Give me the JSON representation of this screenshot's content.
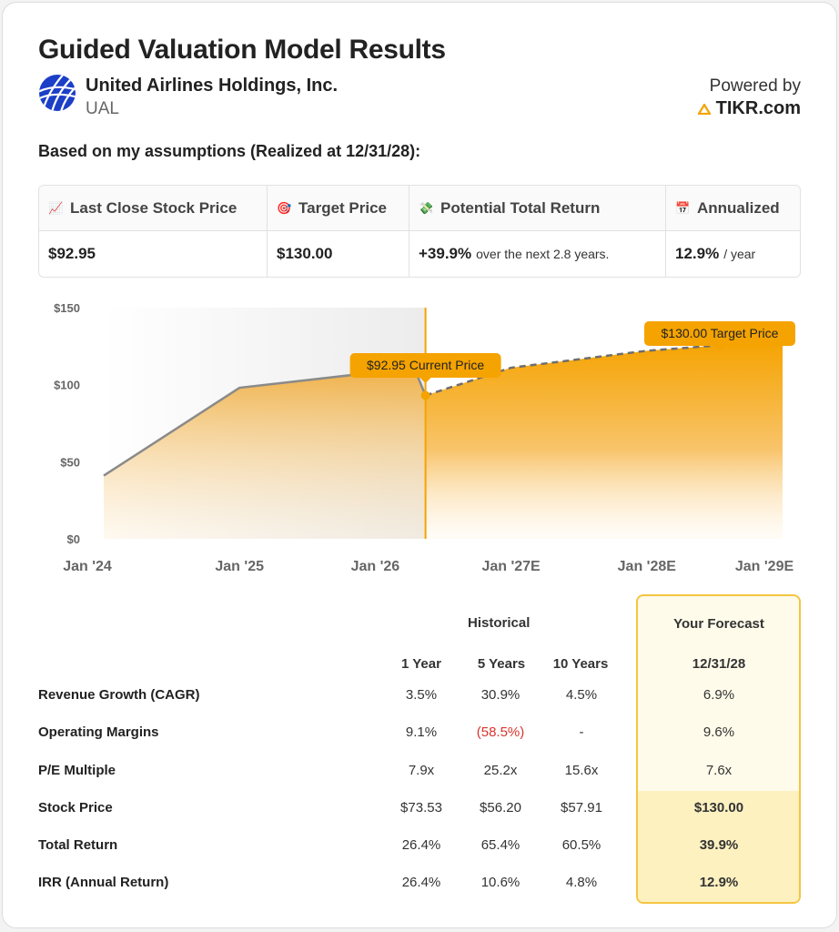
{
  "header": {
    "title": "Guided Valuation Model Results",
    "company": "United Airlines Holdings, Inc.",
    "ticker": "UAL",
    "powered_by": "Powered by",
    "brand": "TIKR.com"
  },
  "assumptions_label": "Based on my assumptions (Realized at 12/31/28):",
  "summary": [
    {
      "icon": "chart-up-icon",
      "glyph": "📈",
      "label": "Last Close Stock Price",
      "value": "$92.95",
      "suffix": ""
    },
    {
      "icon": "target-icon",
      "glyph": "🎯",
      "label": "Target Price",
      "value": "$130.00",
      "suffix": ""
    },
    {
      "icon": "money-icon",
      "glyph": "💸",
      "label": "Potential Total Return",
      "value": "+39.9%",
      "suffix": "over the next 2.8 years."
    },
    {
      "icon": "calendar-icon",
      "glyph": "📅",
      "label": "Annualized",
      "value": "12.9%",
      "suffix": "/ year"
    }
  ],
  "chart_data": {
    "type": "area",
    "title": "",
    "x_labels": [
      "Jan '24",
      "Jan '25",
      "Jan '26",
      "Jan '27E",
      "Jan '28E",
      "Jan '29E"
    ],
    "y_ticks": [
      "$0",
      "$50",
      "$100",
      "$150"
    ],
    "ylim": [
      0,
      150
    ],
    "xlim": [
      2024.0,
      2029.0
    ],
    "historical": {
      "x": [
        2024.0,
        2025.0,
        2026.0,
        2026.3,
        2026.37
      ],
      "y": [
        41,
        98,
        108,
        108,
        93
      ]
    },
    "forecast": {
      "x": [
        2026.37,
        2027.0,
        2028.0,
        2028.6,
        2029.0
      ],
      "y": [
        93,
        111,
        122,
        126,
        128
      ]
    },
    "current_marker_x": 2026.37,
    "current_label": "$92.95 Current Price",
    "target_label": "$130.00 Target Price",
    "colors": {
      "accent": "#f5a300",
      "line": "#8a8a8a",
      "shade": "#ececec"
    }
  },
  "table": {
    "historical_label": "Historical",
    "forecast_label": "Your Forecast",
    "columns": [
      "1 Year",
      "5 Years",
      "10 Years"
    ],
    "forecast_date": "12/31/28",
    "rows": [
      {
        "label": "Revenue Growth (CAGR)",
        "values": [
          "3.5%",
          "30.9%",
          "4.5%"
        ],
        "forecast": "6.9%"
      },
      {
        "label": "Operating Margins",
        "values": [
          "9.1%",
          "(58.5%)",
          "-"
        ],
        "forecast": "9.6%"
      },
      {
        "label": "P/E Multiple",
        "values": [
          "7.9x",
          "25.2x",
          "15.6x"
        ],
        "forecast": "7.6x"
      },
      {
        "label": "Stock Price",
        "values": [
          "$73.53",
          "$56.20",
          "$57.91"
        ],
        "forecast": "$130.00"
      },
      {
        "label": "Total Return",
        "values": [
          "26.4%",
          "65.4%",
          "60.5%"
        ],
        "forecast": "39.9%"
      },
      {
        "label": "IRR (Annual Return)",
        "values": [
          "26.4%",
          "10.6%",
          "4.8%"
        ],
        "forecast": "12.9%"
      }
    ]
  }
}
